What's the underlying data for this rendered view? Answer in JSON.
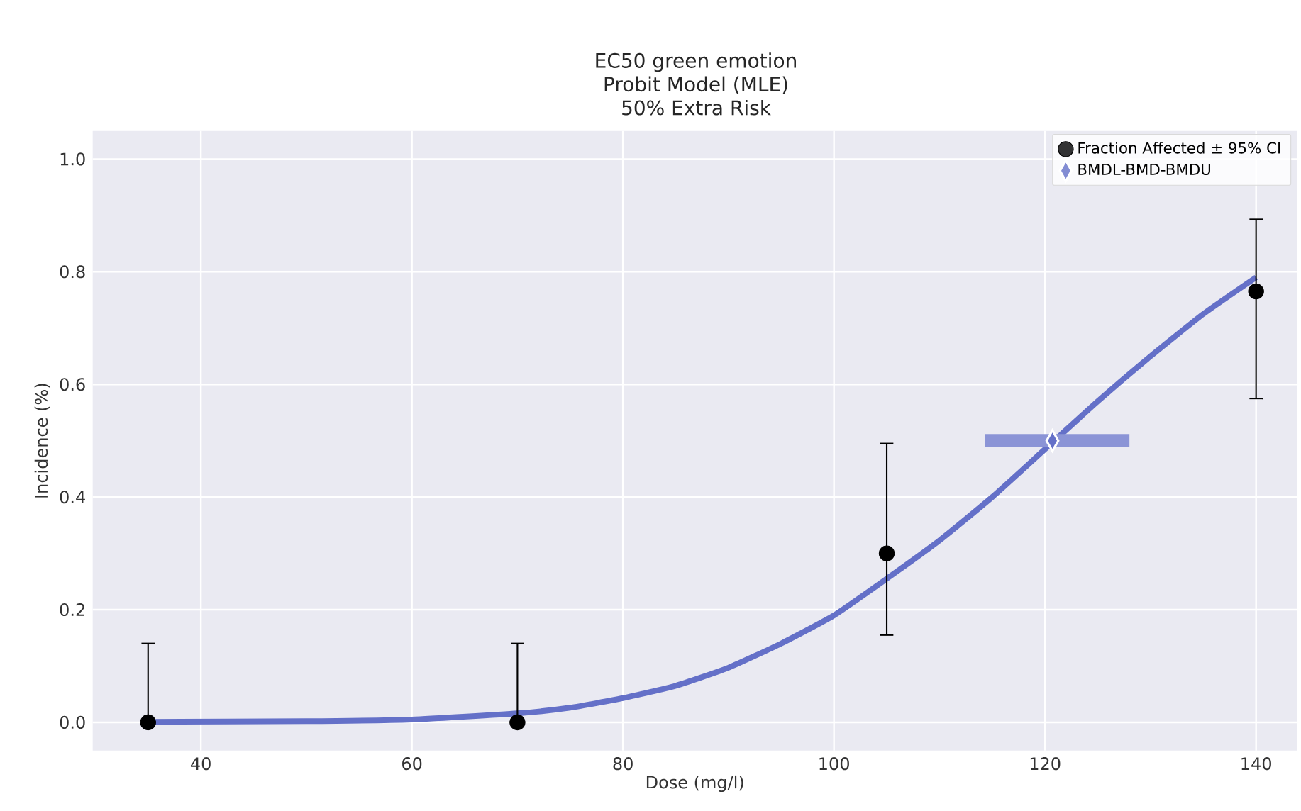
{
  "chart_data": {
    "type": "scatter",
    "title": "EC50 green emotion",
    "subtitle": "Probit Model (MLE)",
    "annotations": [
      "50% Extra Risk"
    ],
    "xlabel": "Dose (mg/l)",
    "ylabel": "Incidence (%)",
    "xlim": [
      29.75,
      143.9
    ],
    "ylim": [
      -0.05,
      1.05
    ],
    "xticks": [
      40,
      60,
      80,
      100,
      120,
      140
    ],
    "yticks": [
      {
        "value": 0,
        "label": "0.0"
      },
      0.2,
      0.4,
      0.6,
      0.8,
      {
        "value": 1,
        "label": "1.0"
      }
    ],
    "grid": true,
    "legend": "top right",
    "series": [
      {
        "type": "line",
        "color": "#6470c8",
        "line_style": "solid",
        "x": [
          35,
          50,
          60,
          70,
          75,
          80,
          85,
          90,
          95,
          100,
          105,
          110,
          115,
          120,
          125,
          130,
          135,
          140
        ],
        "values": [
          0.001,
          0.002,
          0.005,
          0.016,
          0.026,
          0.043,
          0.065,
          0.097,
          0.14,
          0.19,
          0.255,
          0.323,
          0.4,
          0.485,
          0.57,
          0.65,
          0.725,
          0.79
        ]
      },
      {
        "name": "Fraction Affected ± 95% CI",
        "color": "#000000",
        "marker": "circle",
        "x": [
          35,
          70,
          105,
          140
        ],
        "values": [
          0,
          0,
          0.3,
          0.765
        ],
        "errors": [
          [
            0,
            0.14
          ],
          [
            0,
            0.14
          ],
          [
            0.155,
            0.495
          ],
          [
            0.575,
            0.893
          ]
        ]
      },
      {
        "name": "BMDL-BMD-BMDU",
        "color": "#6470c8",
        "marker": "diamond",
        "x": [
          120.7
        ],
        "values": [
          0.5
        ],
        "xerrors": [
          [
            114.3,
            128
          ]
        ]
      }
    ]
  }
}
